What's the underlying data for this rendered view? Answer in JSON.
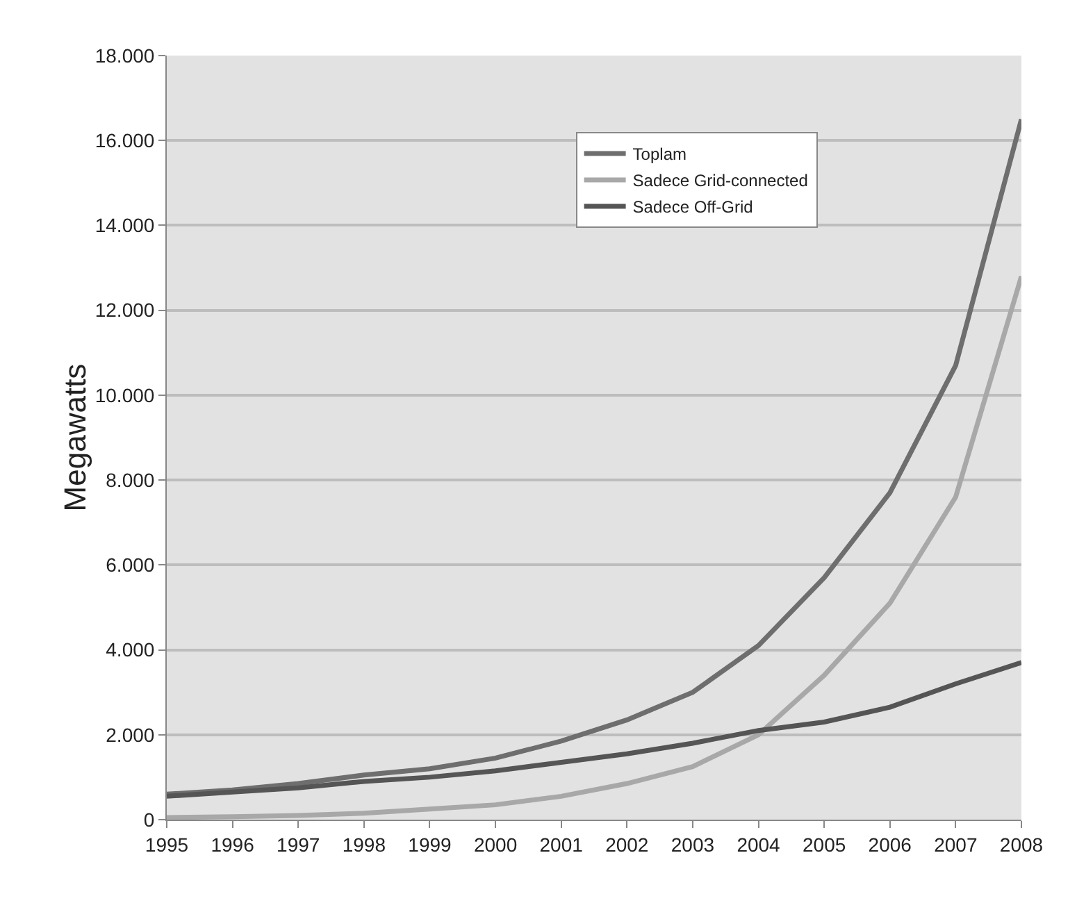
{
  "chart_data": {
    "type": "line",
    "ylabel": "Megawatts",
    "categories": [
      "1995",
      "1996",
      "1997",
      "1998",
      "1999",
      "2000",
      "2001",
      "2002",
      "2003",
      "2004",
      "2005",
      "2006",
      "2007",
      "2008"
    ],
    "series": [
      {
        "name": "Toplam",
        "color": "#6e6e6e",
        "values": [
          600,
          700,
          850,
          1050,
          1200,
          1450,
          1850,
          2350,
          3000,
          4100,
          5700,
          7700,
          10700,
          16500
        ]
      },
      {
        "name": "Sadece Grid-connected",
        "color": "#a8a8a8",
        "values": [
          50,
          70,
          100,
          150,
          250,
          350,
          550,
          850,
          1250,
          2000,
          3400,
          5100,
          7600,
          12800
        ]
      },
      {
        "name": "Sadece Off-Grid",
        "color": "#555555",
        "values": [
          550,
          650,
          750,
          900,
          1000,
          1150,
          1350,
          1550,
          1800,
          2100,
          2300,
          2650,
          3200,
          3700
        ]
      }
    ],
    "ylim": [
      0,
      18000
    ],
    "yticks": [
      {
        "value": 0,
        "label": "0"
      },
      {
        "value": 2000,
        "label": "2.000"
      },
      {
        "value": 4000,
        "label": "4.000"
      },
      {
        "value": 6000,
        "label": "6.000"
      },
      {
        "value": 8000,
        "label": "8.000"
      },
      {
        "value": 10000,
        "label": "10.000"
      },
      {
        "value": 12000,
        "label": "12.000"
      },
      {
        "value": 14000,
        "label": "14.000"
      },
      {
        "value": 16000,
        "label": "16.000"
      },
      {
        "value": 18000,
        "label": "18.000"
      }
    ],
    "grid": "y",
    "legend": "top",
    "marker": "none",
    "line_style": "solid"
  }
}
